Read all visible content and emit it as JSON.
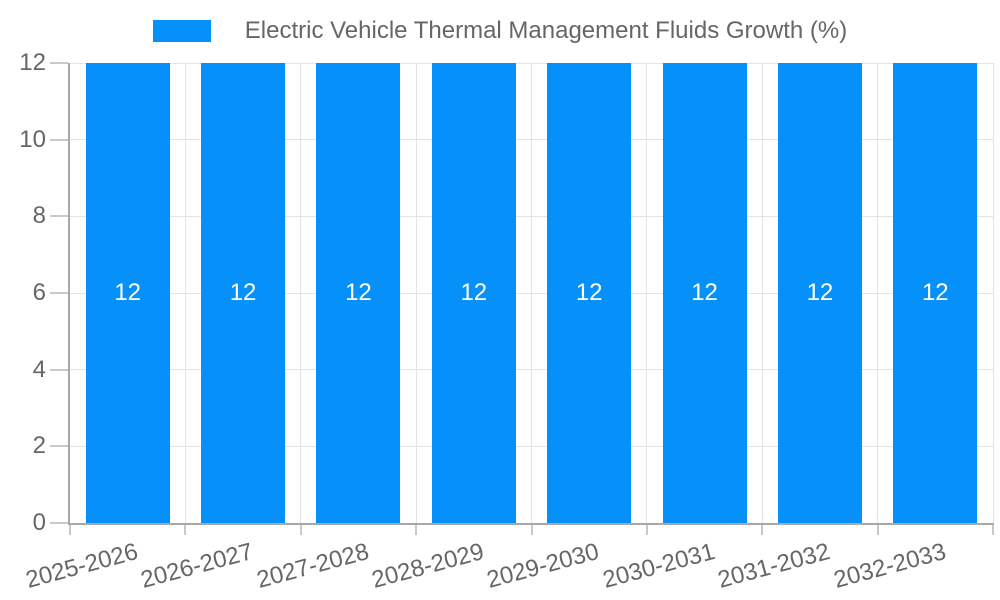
{
  "chart_data": {
    "type": "bar",
    "title": "Electric Vehicle Thermal Management Fluids Growth (%)",
    "categories": [
      "2025-2026",
      "2026-2027",
      "2027-2028",
      "2028-2029",
      "2029-2030",
      "2030-2031",
      "2031-2032",
      "2032-2033"
    ],
    "values": [
      12,
      12,
      12,
      12,
      12,
      12,
      12,
      12
    ],
    "data_labels": [
      "12",
      "12",
      "12",
      "12",
      "12",
      "12",
      "12",
      "12"
    ],
    "xlabel": "",
    "ylabel": "",
    "ylim": [
      0,
      12
    ],
    "yticks": [
      0,
      2,
      4,
      6,
      8,
      10,
      12
    ],
    "grid": true,
    "legend_position": "top",
    "legend_entries": [
      "Electric Vehicle Thermal Management Fluids Growth (%)"
    ],
    "colors": {
      "bar": "#0690fa",
      "bar_label_text": "#ffffff",
      "axis_text": "#666666",
      "grid_line": "#e4e4e4",
      "axis_line": "#a8a8a8",
      "tick_mark": "#c9c9c9",
      "background": "#ffffff"
    }
  }
}
